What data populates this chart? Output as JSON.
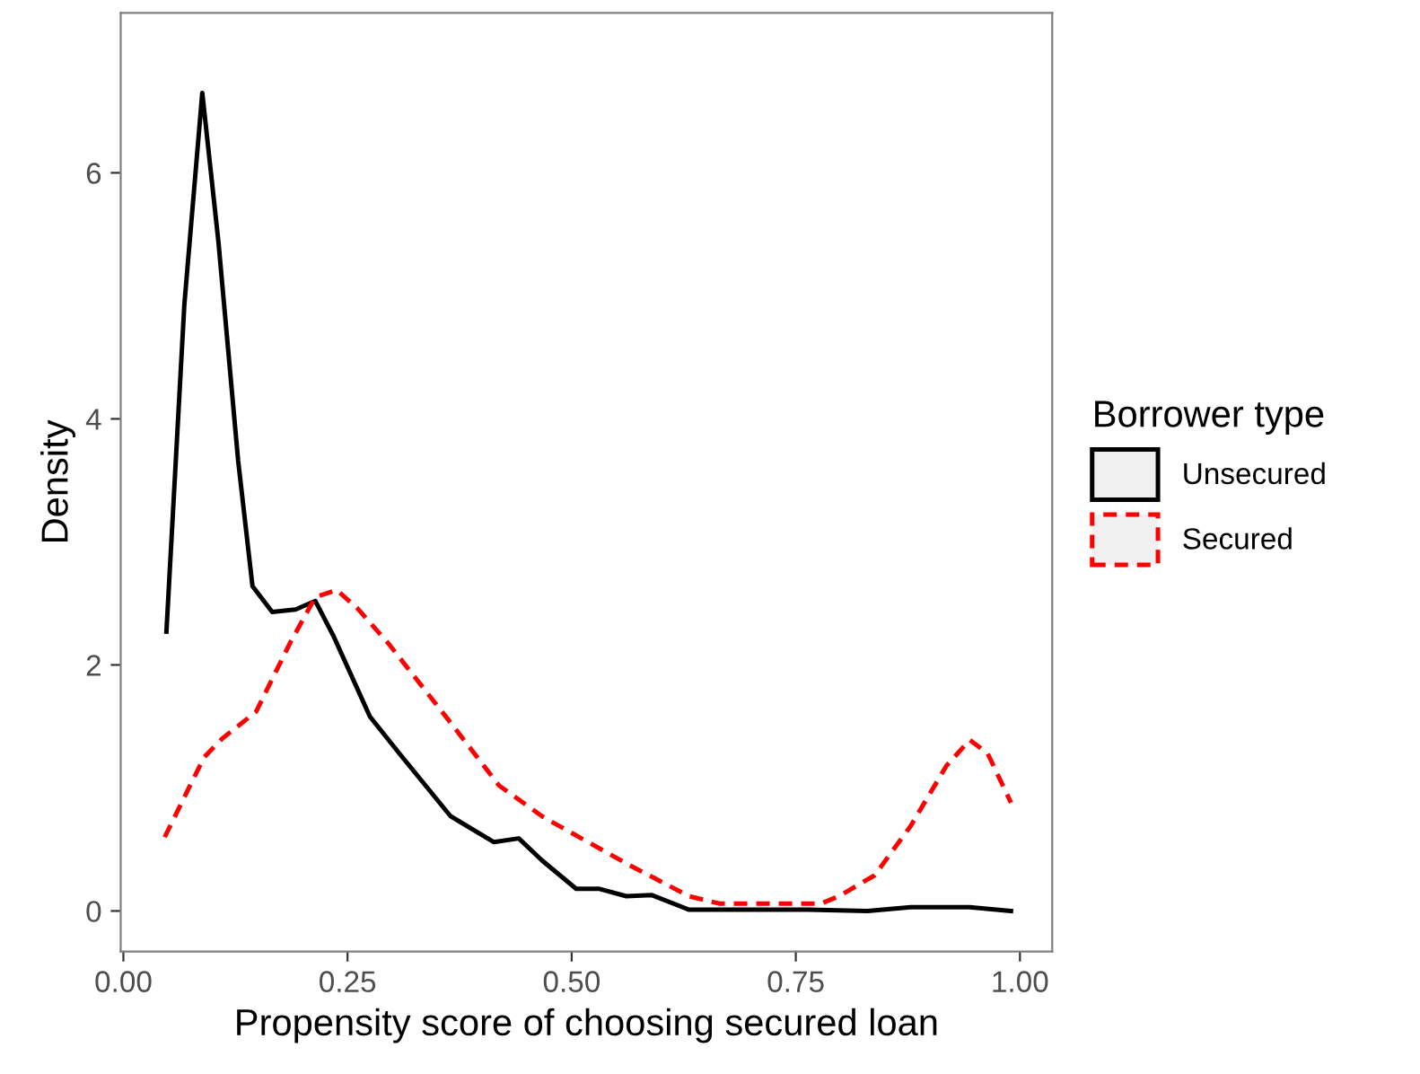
{
  "chart_data": {
    "type": "line",
    "xlabel": "Propensity score of choosing secured loan",
    "ylabel": "Density",
    "legend_title": "Borrower type",
    "xlim": [
      -0.003,
      1.036
    ],
    "ylim": [
      -0.33,
      7.3
    ],
    "xticks": [
      {
        "value": 0,
        "label": "0.00"
      },
      {
        "value": 0.25,
        "label": "0.25"
      },
      {
        "value": 0.5,
        "label": "0.50"
      },
      {
        "value": 0.75,
        "label": "0.75"
      },
      {
        "value": 1,
        "label": "1.00"
      }
    ],
    "yticks": [
      0,
      2,
      4,
      6
    ],
    "grid": false,
    "legend": "right",
    "series": [
      {
        "name": "Unsecured",
        "color": "#000000",
        "line_style": "solid",
        "x": [
          0.048,
          0.068,
          0.088,
          0.106,
          0.128,
          0.144,
          0.166,
          0.192,
          0.214,
          0.234,
          0.275,
          0.309,
          0.365,
          0.413,
          0.441,
          0.467,
          0.505,
          0.531,
          0.561,
          0.589,
          0.631,
          0.764,
          0.83,
          0.878,
          0.944,
          0.99
        ],
        "values": [
          2.27,
          4.93,
          6.65,
          5.44,
          3.66,
          2.64,
          2.43,
          2.45,
          2.52,
          2.24,
          1.58,
          1.27,
          0.77,
          0.56,
          0.59,
          0.41,
          0.18,
          0.18,
          0.12,
          0.13,
          0.01,
          0.01,
          0,
          0.03,
          0.03,
          0
        ]
      },
      {
        "name": "Secured",
        "color": "#ff0000",
        "line_style": "dashed",
        "x": [
          0.046,
          0.09,
          0.11,
          0.148,
          0.186,
          0.214,
          0.238,
          0.261,
          0.295,
          0.365,
          0.419,
          0.467,
          0.479,
          0.565,
          0.631,
          0.665,
          0.778,
          0.798,
          0.838,
          0.878,
          0.918,
          0.944,
          0.964,
          0.99
        ],
        "values": [
          0.6,
          1.25,
          1.4,
          1.62,
          2.18,
          2.55,
          2.61,
          2.46,
          2.18,
          1.53,
          1.02,
          0.77,
          0.72,
          0.37,
          0.12,
          0.06,
          0.06,
          0.12,
          0.29,
          0.69,
          1.18,
          1.39,
          1.28,
          0.88
        ]
      }
    ]
  }
}
